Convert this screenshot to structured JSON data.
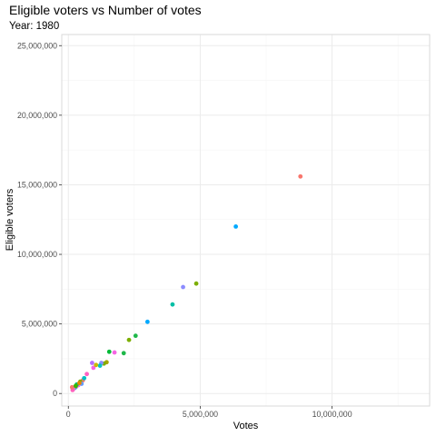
{
  "chart_data": {
    "type": "scatter",
    "title": "Eligible voters vs Number of votes",
    "subtitle": "Year: 1980",
    "xlabel": "Votes",
    "ylabel": "Eligible voters",
    "xlim": [
      -250000,
      13700000
    ],
    "ylim": [
      -900000,
      25800000
    ],
    "x_ticks": [
      0,
      5000000,
      10000000
    ],
    "x_tick_labels": [
      "0",
      "5,000,000",
      "10,000,000"
    ],
    "y_ticks": [
      0,
      5000000,
      10000000,
      15000000,
      20000000,
      25000000
    ],
    "y_tick_labels": [
      "0",
      "5,000,000",
      "10,000,000",
      "15,000,000",
      "20,000,000",
      "25,000,000"
    ],
    "grid": true,
    "legend": "none",
    "colors": {
      "panel_border": "#d9d9d9",
      "grid_major": "#ebebeb",
      "grid_minor": "#f5f5f5"
    },
    "points": [
      {
        "x": 8800000,
        "y": 15600000,
        "color": "#f8766d"
      },
      {
        "x": 6350000,
        "y": 12000000,
        "color": "#00a9ff"
      },
      {
        "x": 4850000,
        "y": 7900000,
        "color": "#7cae00"
      },
      {
        "x": 4350000,
        "y": 7650000,
        "color": "#8c8cff"
      },
      {
        "x": 3950000,
        "y": 6400000,
        "color": "#00bfa5"
      },
      {
        "x": 3000000,
        "y": 5150000,
        "color": "#00a9ff"
      },
      {
        "x": 2550000,
        "y": 4150000,
        "color": "#1fb84a"
      },
      {
        "x": 2300000,
        "y": 3850000,
        "color": "#7cae00"
      },
      {
        "x": 2100000,
        "y": 2900000,
        "color": "#1fb84a"
      },
      {
        "x": 1550000,
        "y": 3000000,
        "color": "#00ba38"
      },
      {
        "x": 1750000,
        "y": 2950000,
        "color": "#f564e3"
      },
      {
        "x": 1450000,
        "y": 2250000,
        "color": "#a3a500"
      },
      {
        "x": 1350000,
        "y": 2150000,
        "color": "#7cae00"
      },
      {
        "x": 1250000,
        "y": 2200000,
        "color": "#8c8cff"
      },
      {
        "x": 1200000,
        "y": 2000000,
        "color": "#00c0c6"
      },
      {
        "x": 900000,
        "y": 2200000,
        "color": "#b36eff"
      },
      {
        "x": 950000,
        "y": 1850000,
        "color": "#f564e3"
      },
      {
        "x": 1050000,
        "y": 2050000,
        "color": "#c9b800"
      },
      {
        "x": 700000,
        "y": 1400000,
        "color": "#ff61c3"
      },
      {
        "x": 550000,
        "y": 950000,
        "color": "#f8766d"
      },
      {
        "x": 600000,
        "y": 1100000,
        "color": "#00bfc4"
      },
      {
        "x": 450000,
        "y": 850000,
        "color": "#7cae00"
      },
      {
        "x": 500000,
        "y": 700000,
        "color": "#619cff"
      },
      {
        "x": 380000,
        "y": 600000,
        "color": "#e76bf3"
      },
      {
        "x": 300000,
        "y": 500000,
        "color": "#ff6a98"
      },
      {
        "x": 250000,
        "y": 420000,
        "color": "#00b0f6"
      },
      {
        "x": 200000,
        "y": 350000,
        "color": "#f8766d"
      },
      {
        "x": 180000,
        "y": 300000,
        "color": "#a58aff"
      },
      {
        "x": 160000,
        "y": 250000,
        "color": "#ff62bc"
      },
      {
        "x": 140000,
        "y": 450000,
        "color": "#f8766d"
      },
      {
        "x": 320000,
        "y": 650000,
        "color": "#00bf7d"
      },
      {
        "x": 420000,
        "y": 750000,
        "color": "#e58700"
      },
      {
        "x": 280000,
        "y": 550000,
        "color": "#39b600"
      }
    ]
  }
}
